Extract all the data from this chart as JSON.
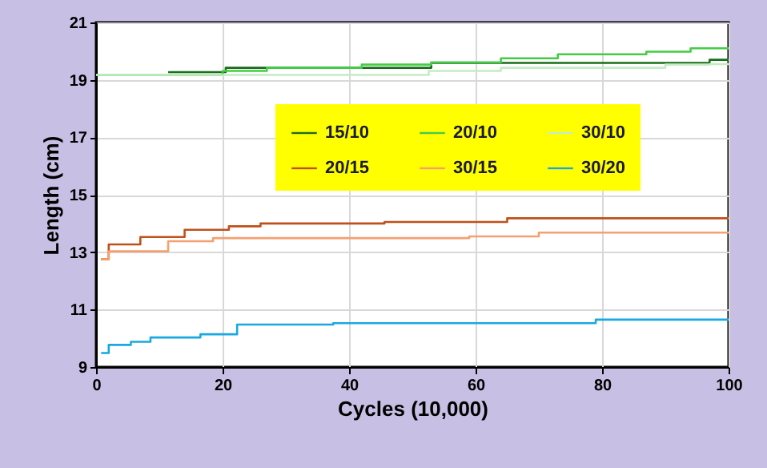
{
  "chart_data": {
    "type": "step",
    "xlabel": "Cycles (10,000)",
    "ylabel": "Length (cm)",
    "xlim": [
      0,
      100
    ],
    "xticks": [
      0,
      20,
      40,
      60,
      80,
      100
    ],
    "ylim": [
      9,
      21
    ],
    "yticks": [
      9,
      11,
      13,
      15,
      17,
      19,
      21
    ],
    "grid": true,
    "legend": "top",
    "marker": "none",
    "line_style": "solid",
    "series": [
      {
        "name": "15/10",
        "color": "#1a6e1a",
        "x": [
          11.4,
          20.5,
          53,
          97,
          100
        ],
        "values": [
          19.27,
          19.42,
          19.59,
          19.7,
          19.7
        ]
      },
      {
        "name": "20/10",
        "color": "#44cc44",
        "x": [
          0,
          20,
          27,
          42,
          53,
          64,
          73,
          87,
          94,
          100
        ],
        "values": [
          19.17,
          19.31,
          19.42,
          19.53,
          19.61,
          19.75,
          19.89,
          19.98,
          20.1,
          20.1
        ]
      },
      {
        "name": "30/10",
        "color": "#c4ecc4",
        "x": [
          0,
          52.6,
          64,
          90,
          97,
          100
        ],
        "values": [
          19.17,
          19.31,
          19.42,
          19.53,
          19.55,
          19.55
        ]
      },
      {
        "name": "20/15",
        "color": "#c0501a",
        "x": [
          0.8,
          2,
          7,
          14,
          21,
          26,
          45.6,
          65,
          100
        ],
        "values": [
          12.75,
          13.27,
          13.53,
          13.78,
          13.9,
          14.0,
          14.05,
          14.18,
          14.18
        ]
      },
      {
        "name": "30/15",
        "color": "#f4a070",
        "x": [
          0.8,
          2,
          11.4,
          18.5,
          59,
          70,
          100
        ],
        "values": [
          12.75,
          13.03,
          13.38,
          13.49,
          13.55,
          13.68,
          13.68
        ]
      },
      {
        "name": "30/20",
        "color": "#1aa8e0",
        "x": [
          0.8,
          2,
          5.5,
          8.6,
          16.5,
          22.3,
          37.5,
          79,
          100
        ],
        "values": [
          9.49,
          9.77,
          9.88,
          10.03,
          10.14,
          10.48,
          10.53,
          10.65,
          10.65
        ]
      }
    ]
  }
}
